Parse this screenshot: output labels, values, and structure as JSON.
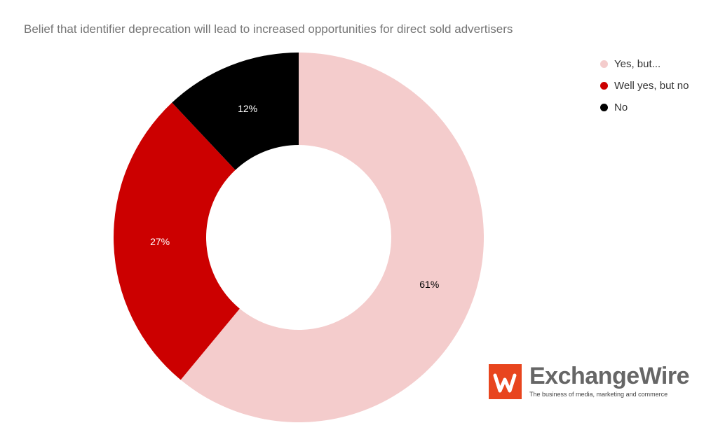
{
  "chart_data": {
    "type": "pie",
    "title": "Belief that identifier deprecation will lead to increased opportunities for direct sold advertisers",
    "donut": true,
    "legend_position": "top-right",
    "slices": [
      {
        "label": "Yes, but...",
        "value": 61,
        "value_label": "61%",
        "color": "#f4cccc",
        "label_color": "#000000"
      },
      {
        "label": "Well yes, but no",
        "value": 27,
        "value_label": "27%",
        "color": "#cc0000",
        "label_color": "#ffffff"
      },
      {
        "label": "No",
        "value": 12,
        "value_label": "12%",
        "color": "#000000",
        "label_color": "#ffffff"
      }
    ]
  },
  "branding": {
    "name_part1": "Exchange",
    "name_part2": "Wire",
    "tagline": "The business of media, marketing and commerce",
    "logo_color": "#e8451e"
  }
}
